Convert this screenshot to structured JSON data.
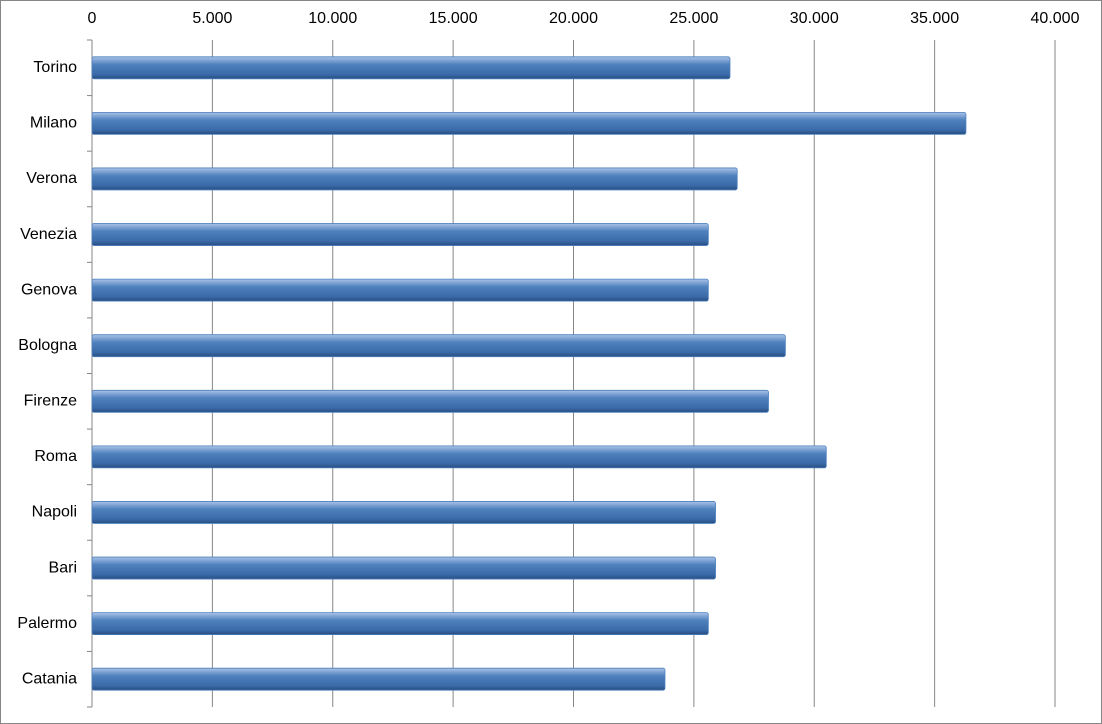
{
  "chart_data": {
    "type": "bar",
    "orientation": "horizontal",
    "categories": [
      "Torino",
      "Milano",
      "Verona",
      "Venezia",
      "Genova",
      "Bologna",
      "Firenze",
      "Roma",
      "Napoli",
      "Bari",
      "Palermo",
      "Catania"
    ],
    "values": [
      26500,
      36300,
      26800,
      25600,
      25600,
      28800,
      28100,
      30500,
      25900,
      25900,
      25600,
      23800
    ],
    "color": "#4f81bd",
    "xlim": [
      0,
      40000
    ],
    "xticks": [
      0,
      {
        "value": 5000,
        "label": "5.000"
      },
      {
        "value": 10000,
        "label": "10.000"
      },
      {
        "value": 15000,
        "label": "15.000"
      },
      {
        "value": 20000,
        "label": "20.000"
      },
      {
        "value": 25000,
        "label": "25.000"
      },
      {
        "value": 30000,
        "label": "30.000"
      },
      {
        "value": 35000,
        "label": "35.000"
      },
      {
        "value": 40000,
        "label": "40.000"
      }
    ],
    "grid": true
  }
}
